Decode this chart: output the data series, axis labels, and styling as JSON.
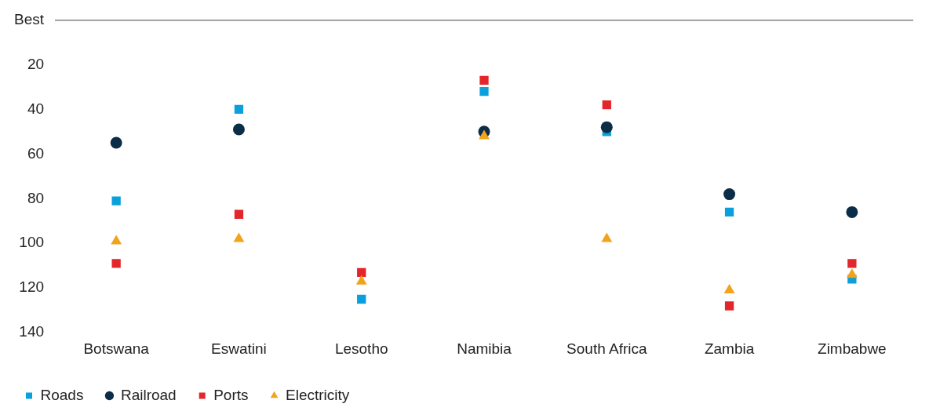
{
  "chart_data": {
    "type": "scatter",
    "categories": [
      "Botswana",
      "Eswatini",
      "Lesotho",
      "Namibia",
      "South Africa",
      "Zambia",
      "Zimbabwe"
    ],
    "series": [
      {
        "name": "Roads",
        "color": "#0aa0dc",
        "marker": "square",
        "values": [
          81,
          40,
          125,
          32,
          50,
          86,
          116
        ]
      },
      {
        "name": "Railroad",
        "color": "#0b2d48",
        "marker": "circle",
        "values": [
          55,
          49,
          null,
          50,
          48,
          78,
          86
        ]
      },
      {
        "name": "Ports",
        "color": "#e3262b",
        "marker": "square",
        "values": [
          109,
          87,
          113,
          27,
          38,
          128,
          109
        ]
      },
      {
        "name": "Electricity",
        "color": "#f2a31b",
        "marker": "triangle",
        "values": [
          99,
          98,
          117,
          52,
          98,
          121,
          114
        ]
      }
    ],
    "ylim": [
      140,
      0
    ],
    "yticks": [
      {
        "value": 0,
        "label": "Best"
      },
      20,
      40,
      60,
      80,
      100,
      120,
      140
    ],
    "grid": false,
    "legend": "bottom left"
  }
}
